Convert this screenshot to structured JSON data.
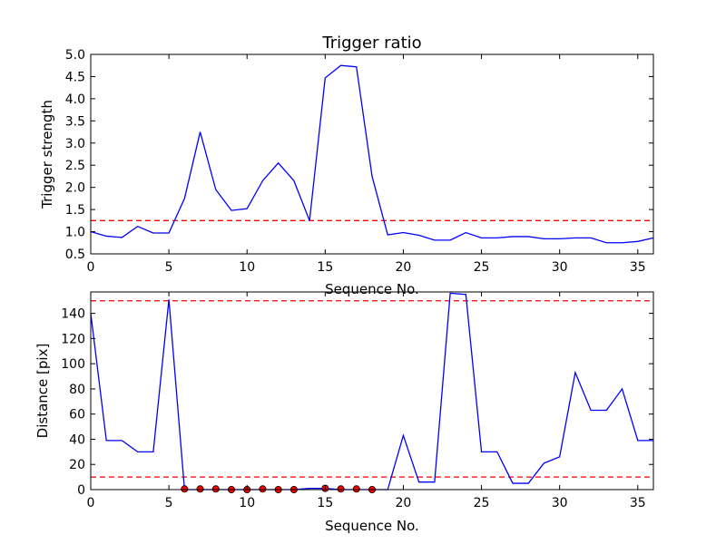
{
  "chart_data": [
    {
      "type": "line",
      "title": "Trigger ratio",
      "xlabel": "Sequence No.",
      "ylabel": "Trigger strength",
      "xlim": [
        0,
        36
      ],
      "ylim": [
        0.5,
        5.0
      ],
      "xticks": [
        0,
        5,
        10,
        15,
        20,
        25,
        30,
        35
      ],
      "yticks": [
        0.5,
        1.0,
        1.5,
        2.0,
        2.5,
        3.0,
        3.5,
        4.0,
        4.5,
        5.0
      ],
      "ytick_labels": [
        "0.5",
        "1.0",
        "1.5",
        "2.0",
        "2.5",
        "3.0",
        "3.5",
        "4.0",
        "4.5",
        "5.0"
      ],
      "grid": false,
      "series": [
        {
          "color": "#0000ff",
          "x": [
            0,
            1,
            2,
            3,
            4,
            5,
            6,
            7,
            8,
            9,
            10,
            11,
            12,
            13,
            14,
            15,
            16,
            17,
            18,
            19,
            20,
            21,
            22,
            23,
            24,
            25,
            26,
            27,
            28,
            29,
            30,
            31,
            32,
            33,
            34,
            35,
            36
          ],
          "y": [
            1.0,
            0.9,
            0.87,
            1.12,
            0.97,
            0.97,
            1.75,
            3.25,
            1.95,
            1.48,
            1.52,
            2.15,
            2.55,
            2.15,
            1.25,
            4.47,
            4.75,
            4.72,
            2.25,
            0.93,
            0.98,
            0.92,
            0.81,
            0.81,
            0.98,
            0.86,
            0.86,
            0.89,
            0.89,
            0.84,
            0.84,
            0.86,
            0.86,
            0.75,
            0.75,
            0.78,
            0.86
          ]
        }
      ],
      "thresholds": [
        {
          "y": 1.25,
          "color": "#ff0000",
          "style": "dashed"
        }
      ]
    },
    {
      "type": "line",
      "title": "",
      "xlabel": "Sequence No.",
      "ylabel": "Distance [pix]",
      "xlim": [
        0,
        36
      ],
      "ylim": [
        0,
        157
      ],
      "xticks": [
        0,
        5,
        10,
        15,
        20,
        25,
        30,
        35
      ],
      "yticks": [
        0,
        20,
        40,
        60,
        80,
        100,
        120,
        140
      ],
      "ytick_labels": [
        "0",
        "20",
        "40",
        "60",
        "80",
        "100",
        "120",
        "140"
      ],
      "grid": false,
      "series": [
        {
          "color": "#0000ff",
          "x": [
            0,
            1,
            2,
            3,
            4,
            5,
            6,
            7,
            8,
            9,
            10,
            11,
            12,
            13,
            14,
            15,
            16,
            17,
            18,
            19,
            20,
            21,
            22,
            23,
            24,
            25,
            26,
            27,
            28,
            29,
            30,
            31,
            32,
            33,
            34,
            35,
            36
          ],
          "y": [
            140,
            39,
            39,
            30,
            30,
            151,
            0,
            0,
            0,
            0,
            0,
            0,
            0,
            0,
            1,
            1,
            0,
            0,
            0,
            0,
            43,
            6,
            6,
            156,
            155,
            30,
            30,
            5,
            5,
            21,
            26,
            93,
            63,
            63,
            80,
            39,
            39
          ]
        },
        {
          "marker": "circle",
          "color": "#ff0000",
          "x": [
            6,
            7,
            8,
            9,
            10,
            11,
            12,
            13,
            15,
            16,
            17,
            18
          ],
          "y": [
            0.5,
            0.5,
            0.5,
            0,
            0,
            0.5,
            0,
            0,
            1,
            0.5,
            0.5,
            0
          ]
        }
      ],
      "thresholds": [
        {
          "y": 150,
          "color": "#ff0000",
          "style": "dashed"
        },
        {
          "y": 10,
          "color": "#ff0000",
          "style": "dashed"
        }
      ]
    }
  ]
}
